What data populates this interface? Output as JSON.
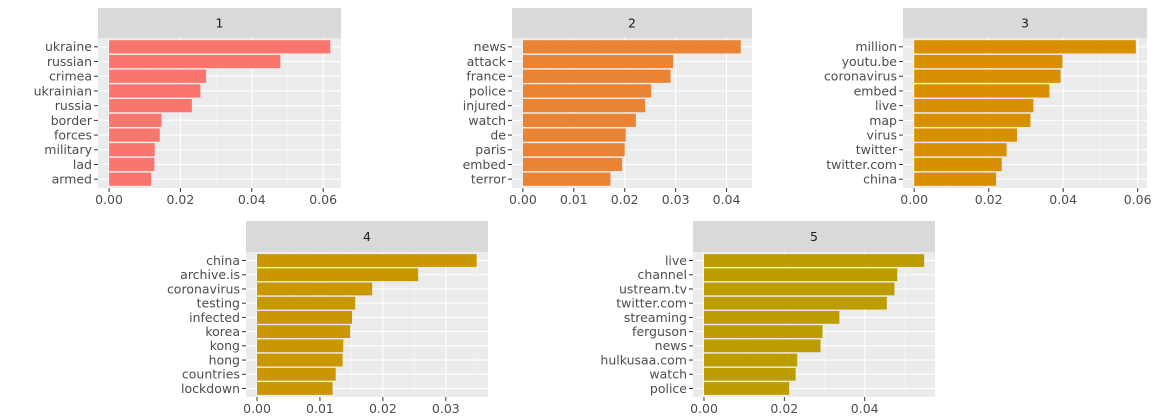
{
  "chart_data": [
    {
      "type": "bar",
      "orientation": "horizontal",
      "facet": "1",
      "color": "#f8766d",
      "categories": [
        "ukraine",
        "russian",
        "crimea",
        "ukrainian",
        "russia",
        "border",
        "forces",
        "military",
        "lad",
        "armed"
      ],
      "values": [
        0.062,
        0.048,
        0.0272,
        0.0256,
        0.0232,
        0.0147,
        0.0142,
        0.0128,
        0.0127,
        0.0118
      ],
      "xlim": [
        -0.0031,
        0.065
      ],
      "xticks": [
        0.0,
        0.02,
        0.04,
        0.06
      ],
      "xtick_labels": [
        "0.00",
        "0.02",
        "0.04",
        "0.06"
      ],
      "grid": true
    },
    {
      "type": "bar",
      "orientation": "horizontal",
      "facet": "2",
      "color": "#eb8335",
      "categories": [
        "news",
        "attack",
        "france",
        "police",
        "injured",
        "watch",
        "de",
        "paris",
        "embed",
        "terror"
      ],
      "values": [
        0.0428,
        0.0295,
        0.029,
        0.0252,
        0.024,
        0.0222,
        0.0202,
        0.02,
        0.0195,
        0.0172
      ],
      "xlim": [
        -0.00214,
        0.045
      ],
      "xticks": [
        0.0,
        0.01,
        0.02,
        0.03,
        0.04
      ],
      "xtick_labels": [
        "0.00",
        "0.01",
        "0.02",
        "0.03",
        "0.04"
      ],
      "grid": true
    },
    {
      "type": "bar",
      "orientation": "horizontal",
      "facet": "3",
      "color": "#d89000",
      "categories": [
        "million",
        "youtu.be",
        "coronavirus",
        "embed",
        "live",
        "map",
        "virus",
        "twitter",
        "twitter.com",
        "china"
      ],
      "values": [
        0.0595,
        0.0398,
        0.0393,
        0.0363,
        0.032,
        0.0312,
        0.0276,
        0.0248,
        0.0235,
        0.022
      ],
      "xlim": [
        -0.003,
        0.0625
      ],
      "xticks": [
        0.0,
        0.02,
        0.04,
        0.06
      ],
      "xtick_labels": [
        "0.00",
        "0.02",
        "0.04",
        "0.06"
      ],
      "grid": true
    },
    {
      "type": "bar",
      "orientation": "horizontal",
      "facet": "4",
      "color": "#c99700",
      "categories": [
        "china",
        "archive.is",
        "coronavirus",
        "testing",
        "infected",
        "korea",
        "kong",
        "hong",
        "countries",
        "lockdown"
      ],
      "values": [
        0.0349,
        0.0256,
        0.0183,
        0.0156,
        0.0151,
        0.0148,
        0.0137,
        0.0136,
        0.0125,
        0.012
      ],
      "xlim": [
        -0.00175,
        0.0367
      ],
      "xticks": [
        0.0,
        0.01,
        0.02,
        0.03
      ],
      "xtick_labels": [
        "0.00",
        "0.01",
        "0.02",
        "0.03"
      ],
      "grid": true
    },
    {
      "type": "bar",
      "orientation": "horizontal",
      "facet": "5",
      "color": "#bb9d00",
      "categories": [
        "live",
        "channel",
        "ustream.tv",
        "twitter.com",
        "streaming",
        "ferguson",
        "news",
        "hulkusaa.com",
        "watch",
        "police"
      ],
      "values": [
        0.0548,
        0.0481,
        0.0474,
        0.0455,
        0.0337,
        0.0295,
        0.029,
        0.0232,
        0.0228,
        0.0212
      ],
      "xlim": [
        -0.00274,
        0.0575
      ],
      "xticks": [
        0.0,
        0.02,
        0.04
      ],
      "xtick_labels": [
        "0.00",
        "0.02",
        "0.04"
      ],
      "grid": true
    }
  ]
}
